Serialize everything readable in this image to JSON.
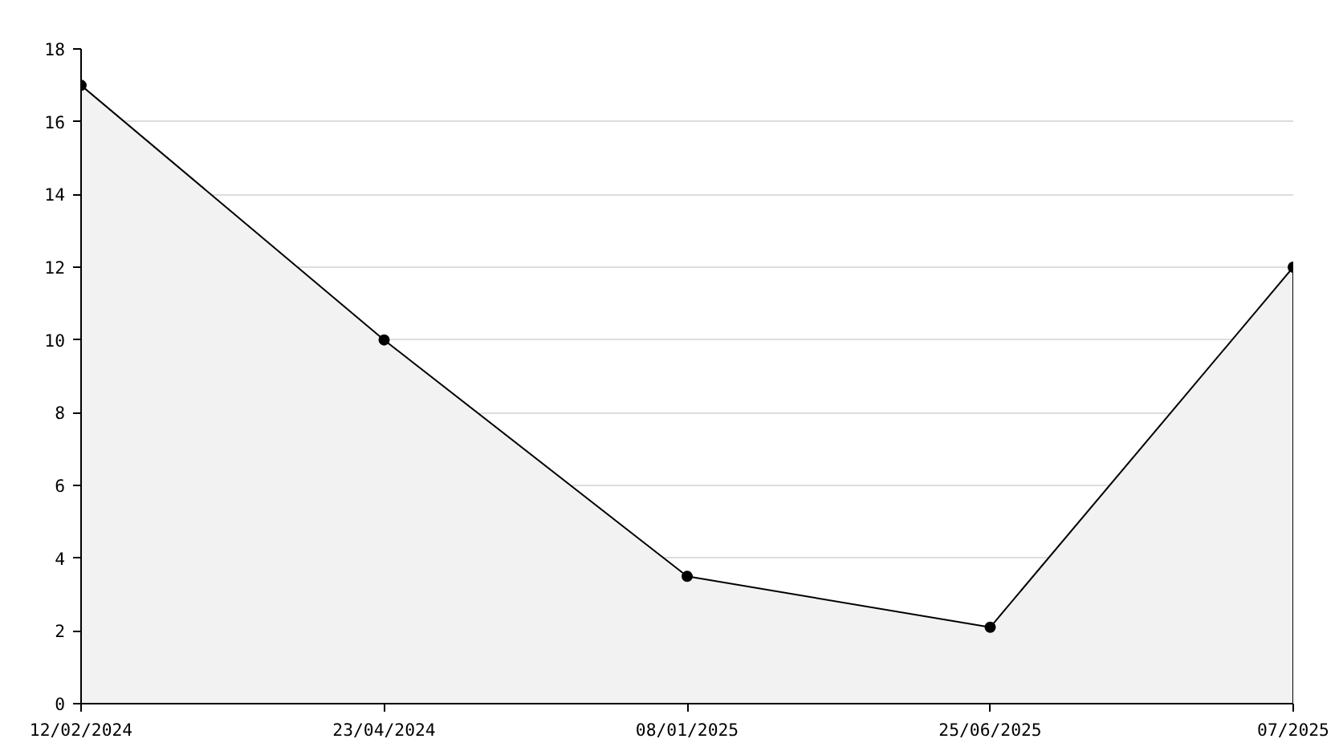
{
  "chart_data": {
    "type": "area",
    "categories": [
      "12/02/2024",
      "23/04/2024",
      "08/01/2025",
      "25/06/2025",
      "07/2025"
    ],
    "series": [
      {
        "color": "#000000",
        "values": [
          17,
          10,
          3.5,
          2.1,
          12
        ]
      }
    ],
    "ylim": [
      0,
      18
    ],
    "yticks": [
      0,
      2,
      4,
      6,
      8,
      10,
      12,
      14,
      16,
      18
    ],
    "grid": "y",
    "marker": "circle",
    "line_style": "solid"
  }
}
